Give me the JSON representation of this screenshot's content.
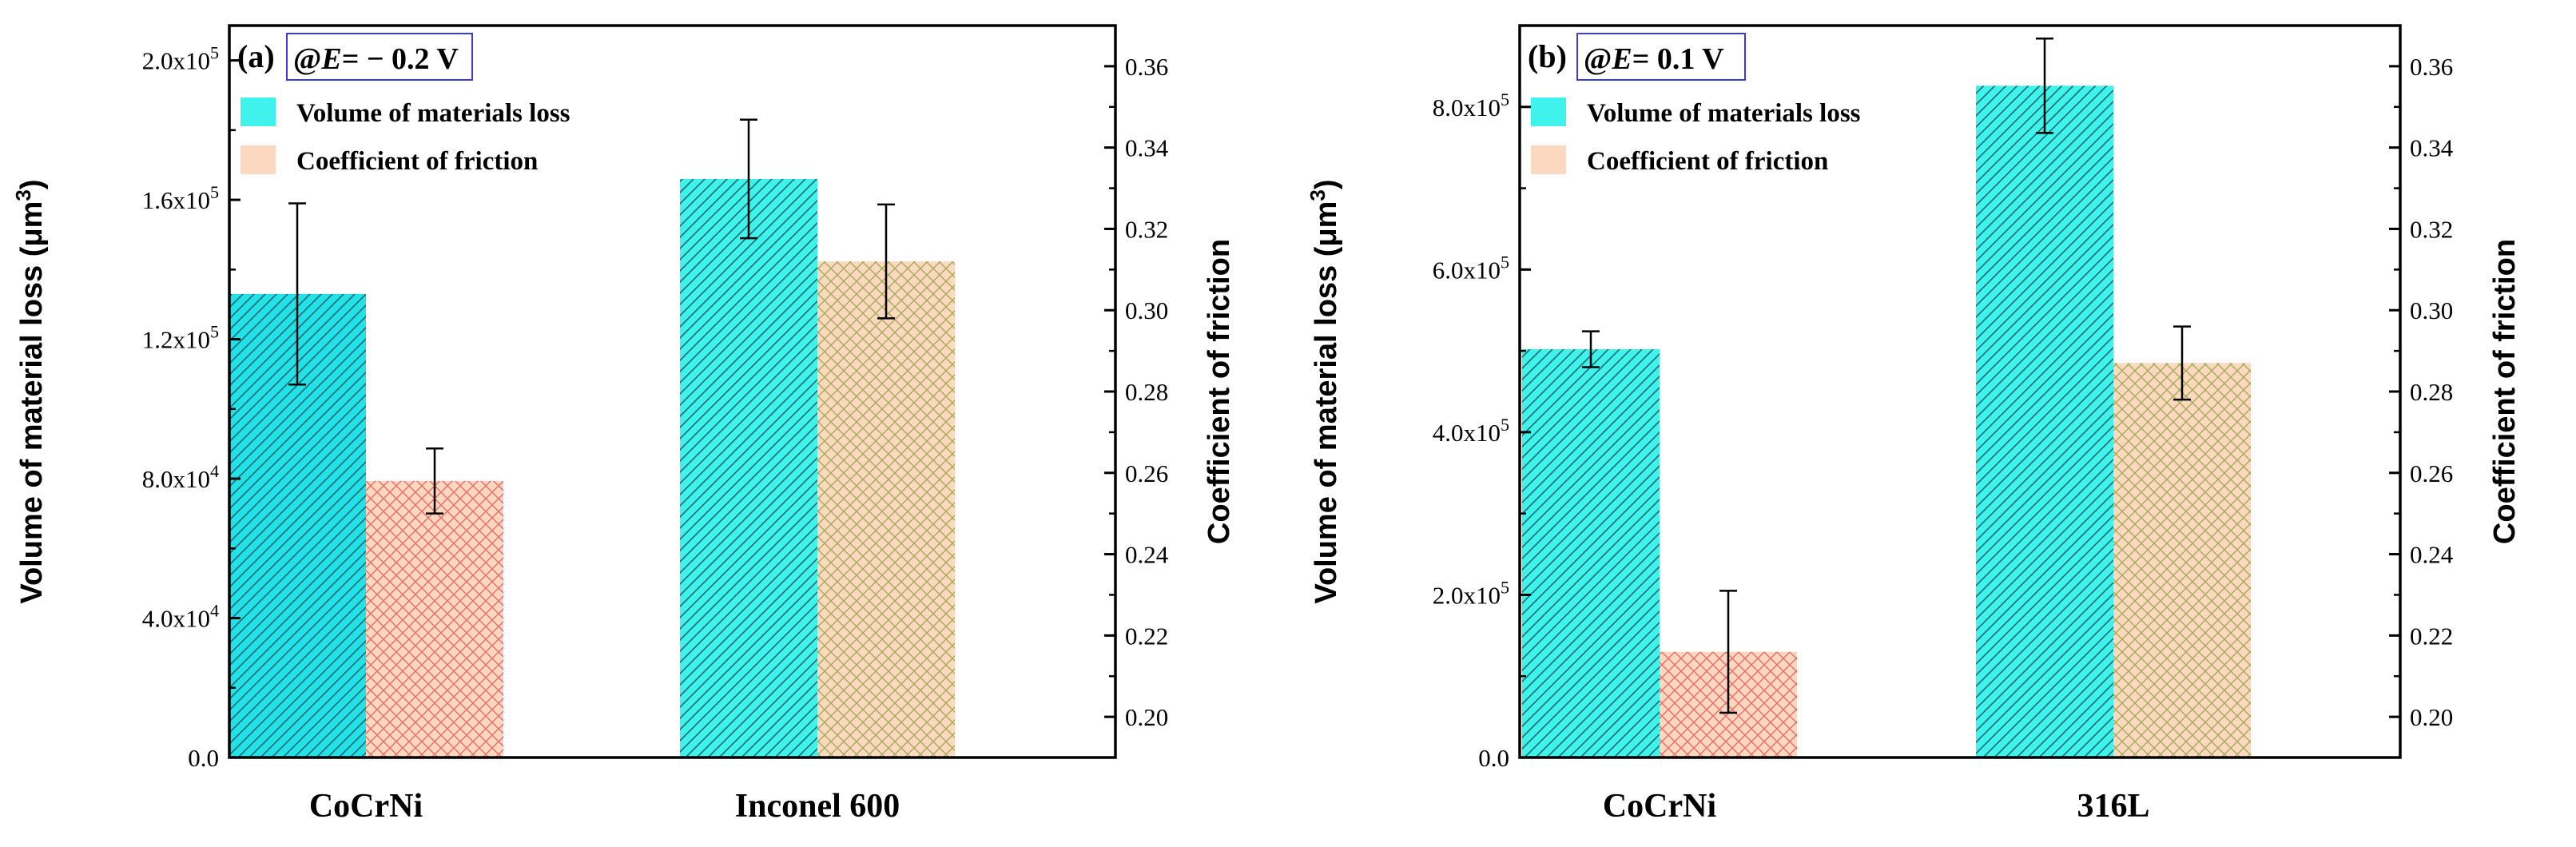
{
  "colors": {
    "volume_fill": "#3ff2ec",
    "volume_fill_dark": "#22e1e8",
    "volume_hatch": "#1f6b6b",
    "cof_fill": "#fbd8bf",
    "cof_hatch_red": "#e8706a",
    "cof_hatch_olive": "#a7ad58",
    "error_bar": "#000000",
    "cond_box": "#3b3bd8"
  },
  "legend": {
    "volume_label": "Volume of materials loss",
    "cof_label": "Coefficient of friction"
  },
  "chart_data": [
    {
      "type": "bar",
      "panel_label": "(a)",
      "condition": {
        "prefix": "@",
        "symbol": "E",
        "value": "= − 0.2 V"
      },
      "categories": [
        "CoCrNi",
        "Inconel 600"
      ],
      "ylabel": "Volume of material loss (μm",
      "ylabel_sup": "3",
      "ylabel_end": ")",
      "y2label": "Coefficient of friction",
      "ylim": [
        0,
        210000
      ],
      "y2lim": [
        0.19,
        0.37
      ],
      "yticks": [
        {
          "value": 0,
          "mant": "0.0",
          "exp": ""
        },
        {
          "value": 40000,
          "mant": "4.0x10",
          "exp": "4"
        },
        {
          "value": 80000,
          "mant": "8.0x10",
          "exp": "4"
        },
        {
          "value": 120000,
          "mant": "1.2x10",
          "exp": "5"
        },
        {
          "value": 160000,
          "mant": "1.6x10",
          "exp": "5"
        },
        {
          "value": 200000,
          "mant": "2.0x10",
          "exp": "5"
        }
      ],
      "y2ticks": [
        "0.20",
        "0.22",
        "0.24",
        "0.26",
        "0.28",
        "0.30",
        "0.32",
        "0.34",
        "0.36"
      ],
      "series": [
        {
          "name": "Volume of materials loss",
          "axis": "left",
          "values": [
            133000,
            166000
          ],
          "errors": [
            26000,
            17000
          ]
        },
        {
          "name": "Coefficient of friction",
          "axis": "right",
          "values": [
            0.258,
            0.312
          ],
          "errors": [
            0.008,
            0.014
          ]
        }
      ]
    },
    {
      "type": "bar",
      "panel_label": "(b)",
      "condition": {
        "prefix": "@",
        "symbol": "E",
        "value": "=  0.1 V"
      },
      "categories": [
        "CoCrNi",
        "316L"
      ],
      "ylabel": "Volume of material loss (μm",
      "ylabel_sup": "3",
      "ylabel_end": ")",
      "y2label": "Coefficient of friction",
      "ylim": [
        0,
        900000
      ],
      "y2lim": [
        0.19,
        0.37
      ],
      "yticks": [
        {
          "value": 0,
          "mant": "0.0",
          "exp": ""
        },
        {
          "value": 200000,
          "mant": "2.0x10",
          "exp": "5"
        },
        {
          "value": 400000,
          "mant": "4.0x10",
          "exp": "5"
        },
        {
          "value": 600000,
          "mant": "6.0x10",
          "exp": "5"
        },
        {
          "value": 800000,
          "mant": "8.0x10",
          "exp": "5"
        }
      ],
      "y2ticks": [
        "0.20",
        "0.22",
        "0.24",
        "0.26",
        "0.28",
        "0.30",
        "0.32",
        "0.34",
        "0.36"
      ],
      "series": [
        {
          "name": "Volume of materials loss",
          "axis": "left",
          "values": [
            502000,
            826000
          ],
          "errors": [
            22000,
            58000
          ]
        },
        {
          "name": "Coefficient of friction",
          "axis": "right",
          "values": [
            0.216,
            0.287
          ],
          "errors": [
            0.015,
            0.009
          ]
        }
      ]
    }
  ]
}
